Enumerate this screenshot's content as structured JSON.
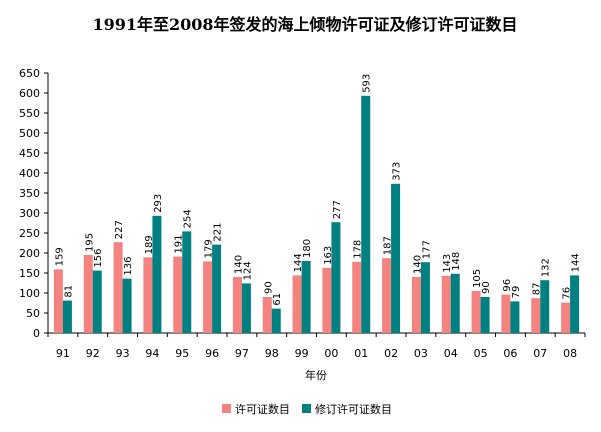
{
  "chart_data": {
    "type": "bar",
    "title": "1991年至2008年签发的海上倾物许可证及修订许可证数目",
    "x_label": "年份",
    "categories": [
      "91",
      "92",
      "93",
      "94",
      "95",
      "96",
      "97",
      "98",
      "99",
      "00",
      "01",
      "02",
      "03",
      "04",
      "05",
      "06",
      "07",
      "08"
    ],
    "series": [
      {
        "name": "许可证数目",
        "color": "#f4827e",
        "values": [
          159,
          195,
          227,
          189,
          191,
          179,
          140,
          90,
          144,
          163,
          178,
          187,
          140,
          143,
          105,
          96,
          87,
          76
        ]
      },
      {
        "name": "修订许可证数目",
        "color": "#008080",
        "values": [
          81,
          156,
          136,
          293,
          254,
          221,
          124,
          61,
          180,
          277,
          593,
          373,
          177,
          148,
          90,
          79,
          132,
          144
        ]
      }
    ],
    "ylim": [
      0,
      650
    ],
    "yticks": [
      0,
      50,
      100,
      150,
      200,
      250,
      300,
      350,
      400,
      450,
      500,
      550,
      600,
      650
    ],
    "grid": false,
    "legend": "bottom"
  }
}
